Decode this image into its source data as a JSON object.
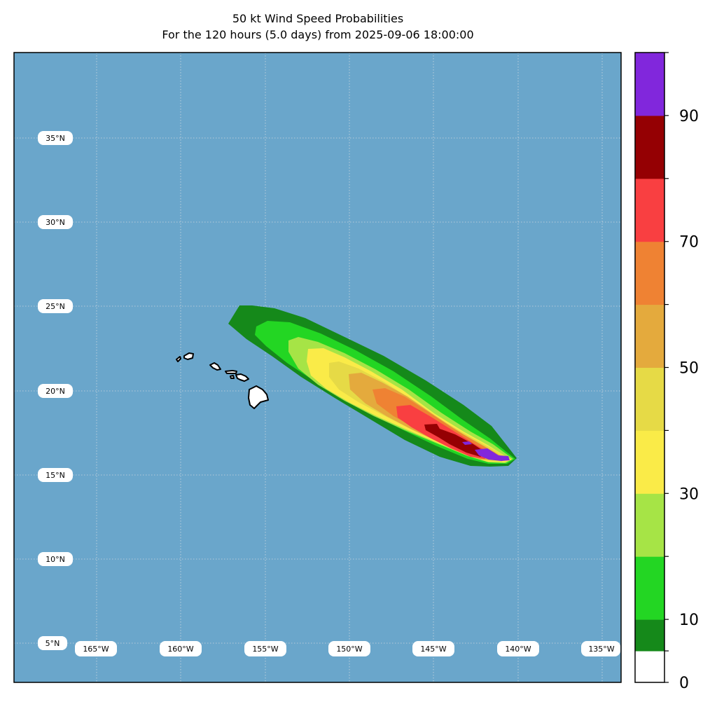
{
  "title": {
    "line1": "50 kt Wind Speed Probabilities",
    "line2": "For the 120 hours (5.0 days) from 2025-09-06 18:00:00"
  },
  "colors": {
    "ocean": "#6aa6cb",
    "land": "#ffffff",
    "coast": "#000000",
    "gridline": "#cfd8e0"
  },
  "map": {
    "lat_labels": [
      "35°N",
      "30°N",
      "25°N",
      "20°N",
      "15°N",
      "10°N",
      "5°N"
    ],
    "lon_labels": [
      "165°W",
      "160°W",
      "155°W",
      "150°W",
      "145°W",
      "140°W",
      "135°W"
    ]
  },
  "colorbar": {
    "ticks": [
      "0",
      "10",
      "30",
      "50",
      "70",
      "90"
    ],
    "levels": [
      0,
      5,
      10,
      20,
      30,
      40,
      50,
      60,
      70,
      80,
      90,
      100
    ],
    "bins": [
      {
        "range": "0-5",
        "color": "#ffffff"
      },
      {
        "range": "5-10",
        "color": "#15891a"
      },
      {
        "range": "10-20",
        "color": "#23d623"
      },
      {
        "range": "20-30",
        "color": "#a6e446"
      },
      {
        "range": "30-40",
        "color": "#faeb48"
      },
      {
        "range": "40-50",
        "color": "#e6da46"
      },
      {
        "range": "50-60",
        "color": "#e4aa3d"
      },
      {
        "range": "60-70",
        "color": "#ef8233"
      },
      {
        "range": "70-80",
        "color": "#f93f41"
      },
      {
        "range": "80-90",
        "color": "#950003"
      },
      {
        "range": "90-100",
        "color": "#8127dc"
      }
    ]
  }
}
